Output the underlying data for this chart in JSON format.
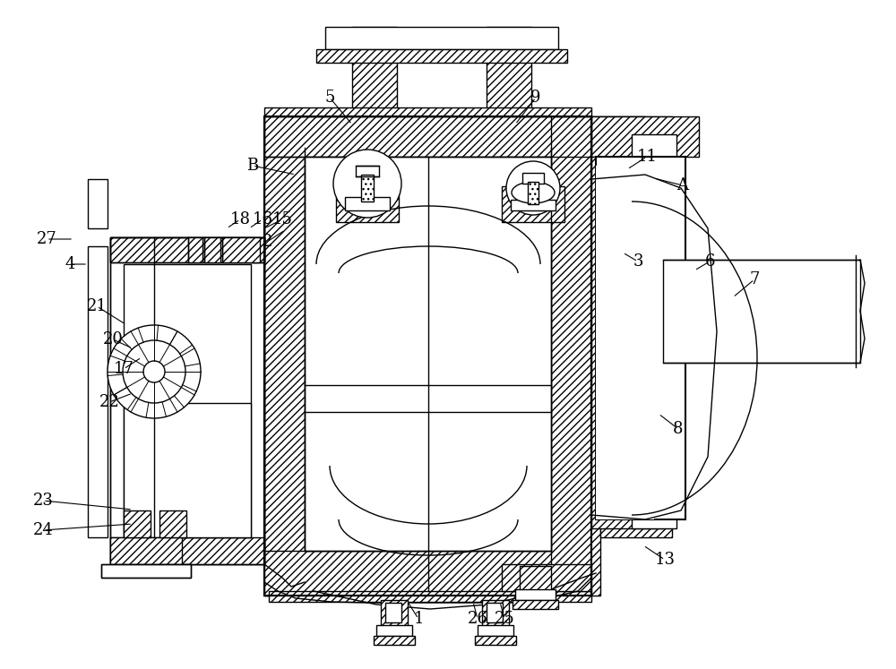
{
  "bg_color": "#ffffff",
  "lw": 1.0,
  "figsize": [
    10.0,
    7.47
  ],
  "dpi": 100,
  "labels": {
    "1": [
      467,
      56,
      455,
      75
    ],
    "2": [
      298,
      477,
      318,
      490
    ],
    "3": [
      712,
      455,
      695,
      465
    ],
    "4": [
      78,
      452,
      98,
      452
    ],
    "5": [
      368,
      638,
      393,
      608
    ],
    "6": [
      792,
      455,
      775,
      445
    ],
    "7": [
      842,
      435,
      818,
      415
    ],
    "8": [
      757,
      268,
      735,
      285
    ],
    "9": [
      598,
      638,
      575,
      608
    ],
    "11": [
      722,
      572,
      700,
      558
    ],
    "13": [
      742,
      122,
      718,
      138
    ],
    "15": [
      315,
      502,
      295,
      492
    ],
    "16": [
      293,
      502,
      278,
      492
    ],
    "17": [
      138,
      335,
      158,
      348
    ],
    "18": [
      268,
      502,
      253,
      492
    ],
    "20": [
      126,
      368,
      148,
      358
    ],
    "21": [
      108,
      405,
      140,
      385
    ],
    "22": [
      122,
      298,
      148,
      308
    ],
    "23": [
      48,
      188,
      148,
      178
    ],
    "24": [
      48,
      155,
      148,
      162
    ],
    "25": [
      563,
      56,
      558,
      75
    ],
    "26": [
      533,
      56,
      528,
      75
    ],
    "27": [
      52,
      480,
      82,
      480
    ],
    "A": [
      762,
      540,
      730,
      548
    ],
    "B": [
      282,
      562,
      330,
      552
    ]
  }
}
